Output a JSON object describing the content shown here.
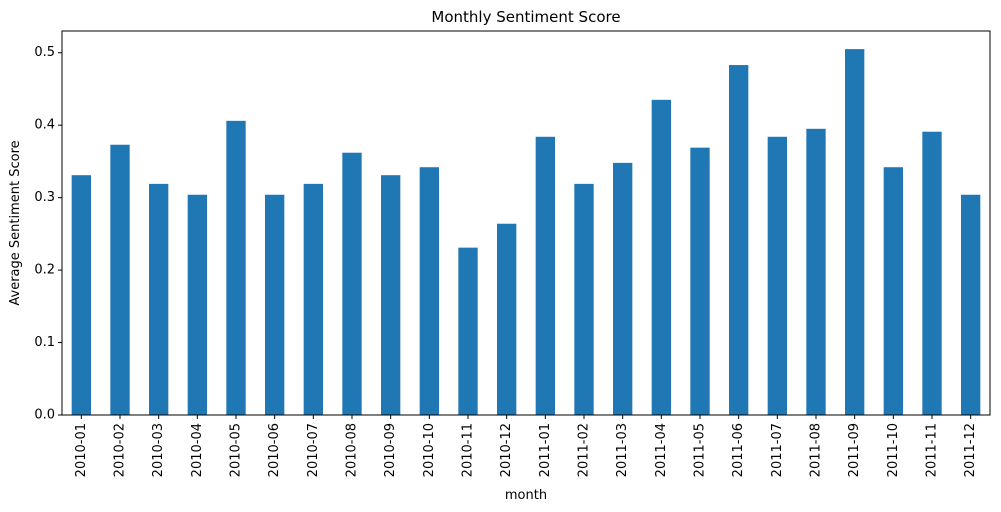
{
  "chart_data": {
    "type": "bar",
    "title": "Monthly Sentiment Score",
    "xlabel": "month",
    "ylabel": "Average Sentiment Score",
    "categories": [
      "2010-01",
      "2010-02",
      "2010-03",
      "2010-04",
      "2010-05",
      "2010-06",
      "2010-07",
      "2010-08",
      "2010-09",
      "2010-10",
      "2010-11",
      "2010-12",
      "2011-01",
      "2011-02",
      "2011-03",
      "2011-04",
      "2011-05",
      "2011-06",
      "2011-07",
      "2011-08",
      "2011-09",
      "2011-10",
      "2011-11",
      "2011-12"
    ],
    "values": [
      0.331,
      0.373,
      0.319,
      0.304,
      0.406,
      0.304,
      0.319,
      0.362,
      0.331,
      0.342,
      0.231,
      0.264,
      0.384,
      0.319,
      0.348,
      0.435,
      0.369,
      0.483,
      0.384,
      0.395,
      0.505,
      0.342,
      0.391,
      0.304
    ],
    "ylim": [
      0,
      0.53
    ],
    "yticks": [
      "0.0",
      "0.1",
      "0.2",
      "0.3",
      "0.4",
      "0.5"
    ],
    "grid": false,
    "bar_color": "#1f77b4"
  }
}
